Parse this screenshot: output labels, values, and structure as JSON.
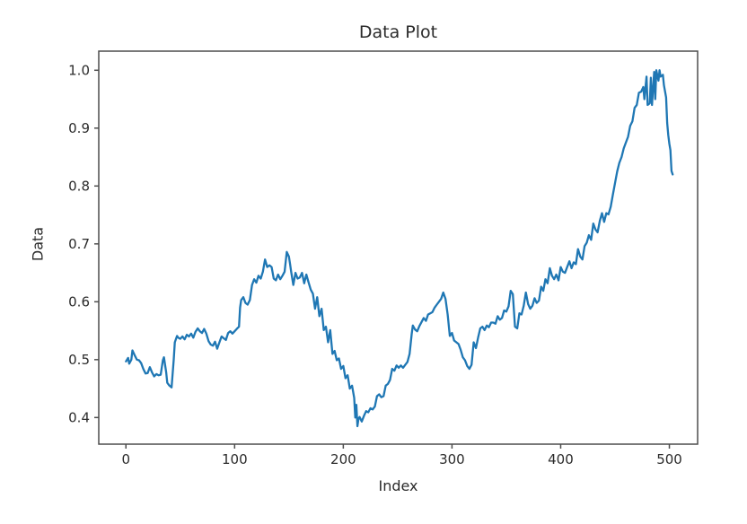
{
  "figure": {
    "background": "#ffffff"
  },
  "chart_data": {
    "type": "line",
    "title": "Data Plot",
    "xlabel": "Index",
    "ylabel": "Data",
    "grid": false,
    "legend": null,
    "xlim": [
      -25,
      526
    ],
    "ylim": [
      0.354,
      1.033
    ],
    "x_tick_values": [
      0,
      100,
      200,
      300,
      400,
      500
    ],
    "x_tick_labels": [
      "0",
      "100",
      "200",
      "300",
      "400",
      "500"
    ],
    "y_tick_values": [
      0.4,
      0.5,
      0.6,
      0.7,
      0.8,
      0.9,
      1.0
    ],
    "y_tick_labels": [
      "0.4",
      "0.5",
      "0.6",
      "0.7",
      "0.8",
      "0.9",
      "1.0"
    ],
    "line_color": "#1f77b4",
    "line_width": 2.3,
    "axis_color": "#4d4d4d",
    "text_color": "#2b2b2b",
    "series": [
      {
        "name": "data",
        "x": [
          0,
          2,
          3,
          5,
          6,
          8,
          10,
          12,
          14,
          16,
          18,
          20,
          22,
          24,
          26,
          28,
          30,
          32,
          34,
          35,
          37,
          38,
          40,
          42,
          44,
          45,
          47,
          48,
          50,
          52,
          54,
          56,
          58,
          60,
          62,
          64,
          66,
          68,
          70,
          72,
          74,
          76,
          78,
          80,
          82,
          84,
          86,
          88,
          90,
          92,
          94,
          96,
          98,
          100,
          102,
          104,
          105,
          106,
          108,
          110,
          112,
          114,
          116,
          118,
          120,
          122,
          124,
          126,
          128,
          130,
          132,
          134,
          136,
          138,
          140,
          142,
          144,
          146,
          148,
          150,
          151,
          152,
          154,
          156,
          158,
          160,
          162,
          164,
          166,
          168,
          170,
          172,
          174,
          176,
          178,
          180,
          182,
          184,
          186,
          188,
          190,
          192,
          194,
          196,
          198,
          200,
          202,
          204,
          206,
          208,
          210,
          211,
          212,
          213,
          214,
          215,
          217,
          219,
          221,
          223,
          225,
          227,
          229,
          231,
          233,
          235,
          237,
          239,
          241,
          243,
          245,
          247,
          249,
          251,
          253,
          255,
          257,
          259,
          261,
          263,
          264,
          266,
          268,
          270,
          272,
          274,
          276,
          278,
          280,
          282,
          284,
          286,
          288,
          290,
          292,
          294,
          296,
          298,
          300,
          302,
          304,
          306,
          308,
          310,
          312,
          314,
          316,
          318,
          320,
          322,
          324,
          326,
          328,
          330,
          332,
          334,
          336,
          338,
          340,
          342,
          344,
          346,
          348,
          350,
          352,
          354,
          356,
          358,
          360,
          362,
          364,
          366,
          368,
          370,
          372,
          374,
          376,
          378,
          380,
          382,
          384,
          386,
          388,
          390,
          392,
          394,
          396,
          398,
          400,
          402,
          404,
          406,
          408,
          410,
          412,
          414,
          416,
          418,
          420,
          422,
          424,
          426,
          428,
          430,
          432,
          434,
          436,
          438,
          440,
          442,
          444,
          446,
          448,
          450,
          452,
          454,
          456,
          458,
          460,
          462,
          464,
          466,
          468,
          470,
          472,
          474,
          476,
          477,
          479,
          480,
          482,
          483,
          484,
          486,
          487,
          488,
          490,
          491,
          492,
          494,
          495,
          497,
          498,
          499,
          500,
          501,
          502,
          503
        ],
        "y": [
          0.497,
          0.503,
          0.493,
          0.5,
          0.516,
          0.508,
          0.5,
          0.499,
          0.494,
          0.484,
          0.476,
          0.477,
          0.487,
          0.478,
          0.471,
          0.475,
          0.473,
          0.474,
          0.499,
          0.504,
          0.478,
          0.46,
          0.455,
          0.452,
          0.5,
          0.53,
          0.541,
          0.538,
          0.536,
          0.54,
          0.535,
          0.543,
          0.54,
          0.545,
          0.538,
          0.548,
          0.554,
          0.549,
          0.546,
          0.553,
          0.545,
          0.532,
          0.526,
          0.524,
          0.531,
          0.519,
          0.53,
          0.54,
          0.537,
          0.534,
          0.546,
          0.549,
          0.545,
          0.549,
          0.553,
          0.557,
          0.59,
          0.603,
          0.608,
          0.598,
          0.595,
          0.603,
          0.629,
          0.639,
          0.633,
          0.645,
          0.64,
          0.652,
          0.673,
          0.66,
          0.663,
          0.66,
          0.64,
          0.637,
          0.647,
          0.639,
          0.645,
          0.652,
          0.686,
          0.678,
          0.665,
          0.652,
          0.629,
          0.65,
          0.64,
          0.642,
          0.65,
          0.632,
          0.647,
          0.634,
          0.621,
          0.614,
          0.588,
          0.608,
          0.575,
          0.588,
          0.551,
          0.557,
          0.53,
          0.551,
          0.51,
          0.515,
          0.499,
          0.502,
          0.484,
          0.489,
          0.468,
          0.473,
          0.45,
          0.455,
          0.434,
          0.4,
          0.422,
          0.385,
          0.398,
          0.401,
          0.393,
          0.403,
          0.411,
          0.409,
          0.416,
          0.414,
          0.419,
          0.437,
          0.44,
          0.435,
          0.437,
          0.455,
          0.458,
          0.465,
          0.484,
          0.481,
          0.49,
          0.486,
          0.49,
          0.486,
          0.491,
          0.496,
          0.51,
          0.545,
          0.559,
          0.552,
          0.549,
          0.558,
          0.565,
          0.572,
          0.567,
          0.578,
          0.58,
          0.582,
          0.59,
          0.595,
          0.6,
          0.605,
          0.616,
          0.605,
          0.578,
          0.541,
          0.546,
          0.533,
          0.53,
          0.527,
          0.517,
          0.504,
          0.499,
          0.489,
          0.484,
          0.491,
          0.53,
          0.52,
          0.538,
          0.554,
          0.557,
          0.551,
          0.559,
          0.556,
          0.564,
          0.564,
          0.562,
          0.575,
          0.569,
          0.572,
          0.585,
          0.583,
          0.592,
          0.619,
          0.613,
          0.557,
          0.554,
          0.58,
          0.578,
          0.593,
          0.616,
          0.596,
          0.588,
          0.593,
          0.606,
          0.598,
          0.602,
          0.626,
          0.619,
          0.639,
          0.632,
          0.658,
          0.645,
          0.639,
          0.647,
          0.637,
          0.66,
          0.652,
          0.65,
          0.66,
          0.67,
          0.658,
          0.668,
          0.665,
          0.691,
          0.678,
          0.673,
          0.696,
          0.702,
          0.715,
          0.707,
          0.735,
          0.725,
          0.72,
          0.74,
          0.753,
          0.738,
          0.753,
          0.751,
          0.764,
          0.785,
          0.805,
          0.825,
          0.84,
          0.85,
          0.865,
          0.875,
          0.885,
          0.904,
          0.912,
          0.935,
          0.94,
          0.961,
          0.963,
          0.971,
          0.95,
          0.989,
          0.94,
          0.943,
          0.987,
          0.94,
          0.997,
          0.95,
          1.0,
          0.982,
          1.0,
          0.989,
          0.992,
          0.974,
          0.953,
          0.909,
          0.888,
          0.873,
          0.862,
          0.826,
          0.82
        ]
      }
    ]
  }
}
